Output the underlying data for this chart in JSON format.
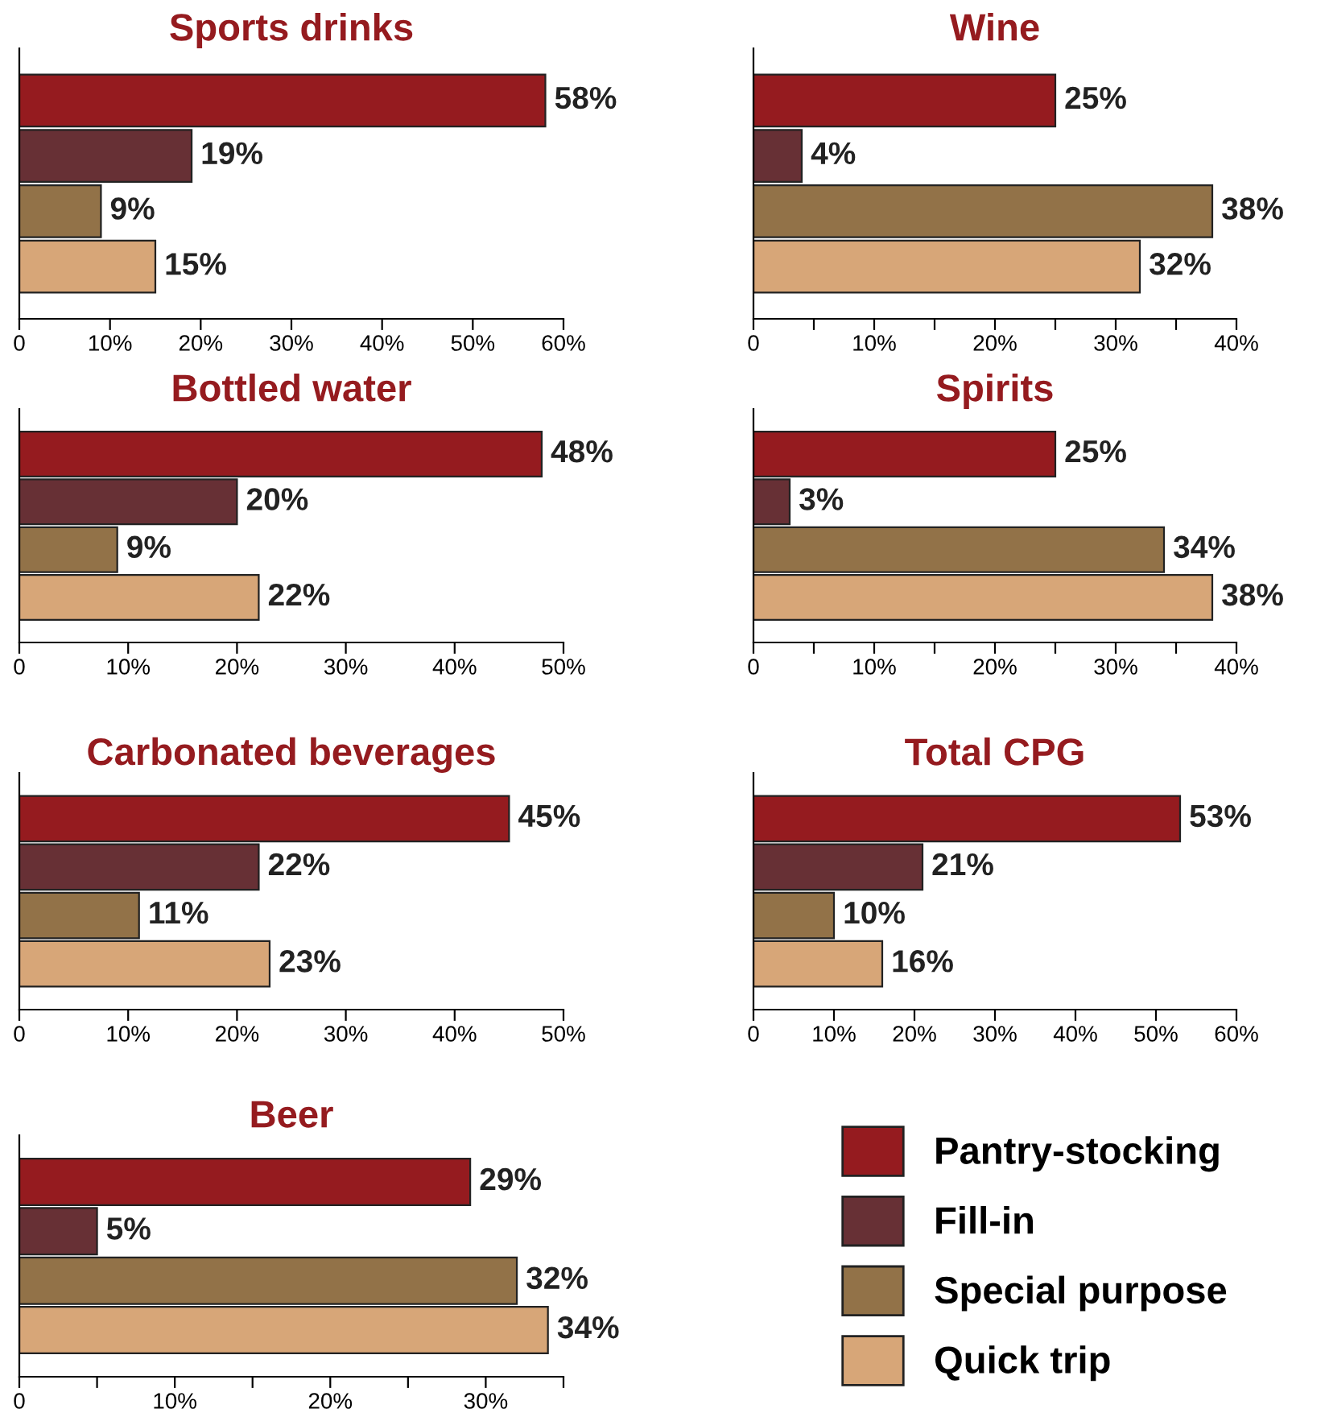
{
  "chart_data": [
    {
      "type": "bar",
      "orientation": "horizontal",
      "title": "Sports drinks",
      "categories": [
        null
      ],
      "xlim": [
        0,
        60
      ],
      "xticks": [
        0,
        {
          "value": 10,
          "label": "10%"
        },
        {
          "value": 20,
          "label": "20%"
        },
        {
          "value": 30,
          "label": "30%"
        },
        {
          "value": 40,
          "label": "40%"
        },
        {
          "value": 50,
          "label": "50%"
        },
        {
          "value": 60,
          "label": "60%"
        }
      ],
      "series": [
        {
          "color": "#951b1f",
          "values": [
            58
          ],
          "value_labels": [
            "58%"
          ]
        },
        {
          "color": "#673035",
          "values": [
            19
          ],
          "value_labels": [
            "19%"
          ]
        },
        {
          "color": "#927248",
          "values": [
            9
          ],
          "value_labels": [
            "9%"
          ]
        },
        {
          "color": "#d7a678",
          "values": [
            15
          ],
          "value_labels": [
            "15%"
          ]
        }
      ]
    },
    {
      "type": "bar",
      "orientation": "horizontal",
      "title": "Wine",
      "categories": [
        null
      ],
      "xlim": [
        0,
        40
      ],
      "xticks": [
        0,
        {
          "value": 5,
          "label": null
        },
        {
          "value": 10,
          "label": "10%"
        },
        {
          "value": 15,
          "label": null
        },
        {
          "value": 20,
          "label": "20%"
        },
        {
          "value": 25,
          "label": null
        },
        {
          "value": 30,
          "label": "30%"
        },
        {
          "value": 35,
          "label": null
        },
        {
          "value": 40,
          "label": "40%"
        }
      ],
      "series": [
        {
          "color": "#951b1f",
          "values": [
            25
          ],
          "value_labels": [
            "25%"
          ]
        },
        {
          "color": "#673035",
          "values": [
            4
          ],
          "value_labels": [
            "4%"
          ]
        },
        {
          "color": "#927248",
          "values": [
            38
          ],
          "value_labels": [
            "38%"
          ]
        },
        {
          "color": "#d7a678",
          "values": [
            32
          ],
          "value_labels": [
            "32%"
          ]
        }
      ]
    },
    {
      "type": "bar",
      "orientation": "horizontal",
      "title": "Bottled water",
      "categories": [
        null
      ],
      "xlim": [
        0,
        50
      ],
      "xticks": [
        0,
        {
          "value": 10,
          "label": "10%"
        },
        {
          "value": 20,
          "label": "20%"
        },
        {
          "value": 30,
          "label": "30%"
        },
        {
          "value": 40,
          "label": "40%"
        },
        {
          "value": 50,
          "label": "50%"
        }
      ],
      "series": [
        {
          "color": "#951b1f",
          "values": [
            48
          ],
          "value_labels": [
            "48%"
          ]
        },
        {
          "color": "#673035",
          "values": [
            20
          ],
          "value_labels": [
            "20%"
          ]
        },
        {
          "color": "#927248",
          "values": [
            9
          ],
          "value_labels": [
            "9%"
          ]
        },
        {
          "color": "#d7a678",
          "values": [
            22
          ],
          "value_labels": [
            "22%"
          ]
        }
      ]
    },
    {
      "type": "bar",
      "orientation": "horizontal",
      "title": "Spirits",
      "categories": [
        null
      ],
      "xlim": [
        0,
        40
      ],
      "xticks": [
        0,
        {
          "value": 5,
          "label": null
        },
        {
          "value": 10,
          "label": "10%"
        },
        {
          "value": 15,
          "label": null
        },
        {
          "value": 20,
          "label": "20%"
        },
        {
          "value": 25,
          "label": null
        },
        {
          "value": 30,
          "label": "30%"
        },
        {
          "value": 35,
          "label": null
        },
        {
          "value": 40,
          "label": "40%"
        }
      ],
      "series": [
        {
          "color": "#951b1f",
          "values": [
            25
          ],
          "value_labels": [
            "25%"
          ]
        },
        {
          "color": "#673035",
          "values": [
            3
          ],
          "value_labels": [
            "3%"
          ]
        },
        {
          "color": "#927248",
          "values": [
            34
          ],
          "value_labels": [
            "34%"
          ]
        },
        {
          "color": "#d7a678",
          "values": [
            38
          ],
          "value_labels": [
            "38%"
          ]
        }
      ]
    },
    {
      "type": "bar",
      "orientation": "horizontal",
      "title": "Carbonated beverages",
      "categories": [
        null
      ],
      "xlim": [
        0,
        50
      ],
      "xticks": [
        0,
        {
          "value": 10,
          "label": "10%"
        },
        {
          "value": 20,
          "label": "20%"
        },
        {
          "value": 30,
          "label": "30%"
        },
        {
          "value": 40,
          "label": "40%"
        },
        {
          "value": 50,
          "label": "50%"
        }
      ],
      "series": [
        {
          "color": "#951b1f",
          "values": [
            45
          ],
          "value_labels": [
            "45%"
          ]
        },
        {
          "color": "#673035",
          "values": [
            22
          ],
          "value_labels": [
            "22%"
          ]
        },
        {
          "color": "#927248",
          "values": [
            11
          ],
          "value_labels": [
            "11%"
          ]
        },
        {
          "color": "#d7a678",
          "values": [
            23
          ],
          "value_labels": [
            "23%"
          ]
        }
      ]
    },
    {
      "type": "bar",
      "orientation": "horizontal",
      "title": "Total CPG",
      "categories": [
        null
      ],
      "xlim": [
        0,
        60
      ],
      "xticks": [
        0,
        {
          "value": 10,
          "label": "10%"
        },
        {
          "value": 20,
          "label": "20%"
        },
        {
          "value": 30,
          "label": "30%"
        },
        {
          "value": 40,
          "label": "40%"
        },
        {
          "value": 50,
          "label": "50%"
        },
        {
          "value": 60,
          "label": "60%"
        }
      ],
      "series": [
        {
          "color": "#951b1f",
          "values": [
            53
          ],
          "value_labels": [
            "53%"
          ]
        },
        {
          "color": "#673035",
          "values": [
            21
          ],
          "value_labels": [
            "21%"
          ]
        },
        {
          "color": "#927248",
          "values": [
            10
          ],
          "value_labels": [
            "10%"
          ]
        },
        {
          "color": "#d7a678",
          "values": [
            16
          ],
          "value_labels": [
            "16%"
          ]
        }
      ]
    },
    {
      "type": "bar",
      "orientation": "horizontal",
      "title": "Beer",
      "categories": [
        null
      ],
      "xlim": [
        0,
        35
      ],
      "xticks": [
        0,
        {
          "value": 5,
          "label": null
        },
        {
          "value": 10,
          "label": "10%"
        },
        {
          "value": 15,
          "label": null
        },
        {
          "value": 20,
          "label": "20%"
        },
        {
          "value": 25,
          "label": null
        },
        {
          "value": 30,
          "label": "30%"
        },
        {
          "value": 35,
          "label": null
        }
      ],
      "series": [
        {
          "name": "Pantry-stocking",
          "color": "#951b1f",
          "values": [
            29
          ],
          "value_labels": [
            "29%"
          ]
        },
        {
          "name": "Fill-in",
          "color": "#673035",
          "values": [
            5
          ],
          "value_labels": [
            "5%"
          ]
        },
        {
          "name": "Special purpose",
          "color": "#927248",
          "values": [
            32
          ],
          "value_labels": [
            "32%"
          ]
        },
        {
          "name": "Quick trip",
          "color": "#d7a678",
          "values": [
            34
          ],
          "value_labels": [
            "34%"
          ]
        }
      ],
      "legend": "right"
    }
  ]
}
